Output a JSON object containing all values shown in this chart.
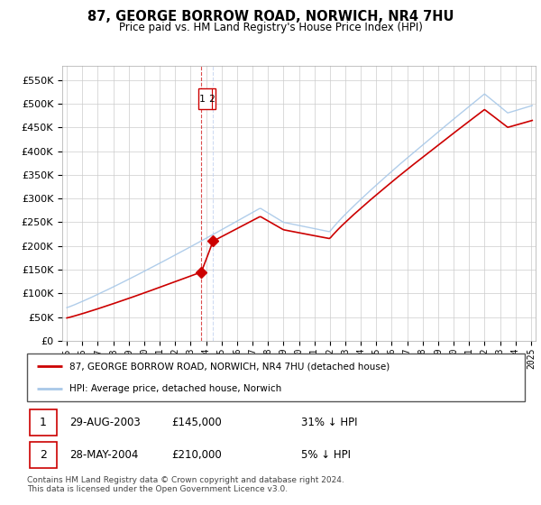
{
  "title": "87, GEORGE BORROW ROAD, NORWICH, NR4 7HU",
  "subtitle": "Price paid vs. HM Land Registry's House Price Index (HPI)",
  "hpi_label": "HPI: Average price, detached house, Norwich",
  "property_label": "87, GEORGE BORROW ROAD, NORWICH, NR4 7HU (detached house)",
  "sale1_label": "1",
  "sale1_date": "29-AUG-2003",
  "sale1_price": "£145,000",
  "sale1_hpi": "31% ↓ HPI",
  "sale2_label": "2",
  "sale2_date": "28-MAY-2004",
  "sale2_price": "£210,000",
  "sale2_hpi": "5% ↓ HPI",
  "copyright": "Contains HM Land Registry data © Crown copyright and database right 2024.\nThis data is licensed under the Open Government Licence v3.0.",
  "ylim": [
    0,
    580000
  ],
  "yticks": [
    0,
    50000,
    100000,
    150000,
    200000,
    250000,
    300000,
    350000,
    400000,
    450000,
    500000,
    550000
  ],
  "sale1_x": 2003.66,
  "sale1_y": 145000,
  "sale2_x": 2004.41,
  "sale2_y": 210000,
  "hpi_color": "#a8c8e8",
  "property_color": "#cc0000",
  "vline_color": "#cc0000",
  "background_color": "#ffffff",
  "grid_color": "#cccccc",
  "xlim_left": 1994.7,
  "xlim_right": 2025.3
}
